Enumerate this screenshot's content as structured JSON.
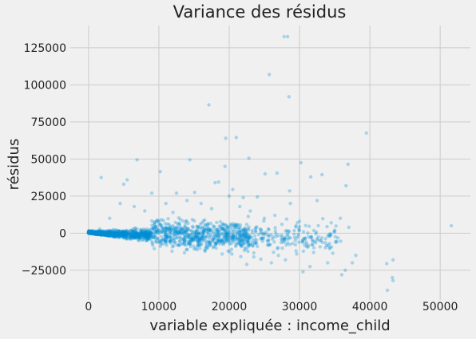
{
  "chart_data": {
    "type": "scatter",
    "title": "Variance des résidus",
    "xlabel": "variable expliquée : income_child",
    "ylabel": "résidus",
    "xlim": [
      -2600,
      54300
    ],
    "ylim": [
      -45000,
      140000
    ],
    "xticks": [
      0,
      10000,
      20000,
      30000,
      40000,
      50000
    ],
    "yticks": [
      -25000,
      0,
      25000,
      50000,
      75000,
      100000,
      125000
    ],
    "grid": true,
    "legend": "none",
    "point_color": "#008fd5",
    "point_alpha": 0.3,
    "band": {
      "x_range": [
        0,
        39000
      ],
      "description": "dense cloud; center values"
    },
    "points": [
      [
        1800,
        37500
      ],
      [
        5000,
        33000
      ],
      [
        5500,
        36000
      ],
      [
        6900,
        49500
      ],
      [
        9000,
        27000
      ],
      [
        10200,
        41500
      ],
      [
        12500,
        27000
      ],
      [
        14400,
        49500
      ],
      [
        15100,
        27500
      ],
      [
        17100,
        86500
      ],
      [
        18000,
        34000
      ],
      [
        18500,
        34500
      ],
      [
        19500,
        64000
      ],
      [
        19400,
        45000
      ],
      [
        21000,
        64500
      ],
      [
        20500,
        29500
      ],
      [
        22000,
        24000
      ],
      [
        22800,
        50500
      ],
      [
        24000,
        24500
      ],
      [
        25700,
        107000
      ],
      [
        25100,
        40000
      ],
      [
        26800,
        40500
      ],
      [
        27800,
        132500
      ],
      [
        28300,
        132500
      ],
      [
        28500,
        92000
      ],
      [
        28600,
        28500
      ],
      [
        30200,
        47500
      ],
      [
        31600,
        38000
      ],
      [
        32500,
        22000
      ],
      [
        33200,
        39500
      ],
      [
        34500,
        7000
      ],
      [
        35800,
        10000
      ],
      [
        36600,
        32000
      ],
      [
        36900,
        46500
      ],
      [
        37000,
        4000
      ],
      [
        38000,
        -15000
      ],
      [
        37500,
        -20000
      ],
      [
        39500,
        67500
      ],
      [
        42400,
        -20500
      ],
      [
        42500,
        -38500
      ],
      [
        43300,
        -18000
      ],
      [
        43200,
        -30000
      ],
      [
        43300,
        -32000
      ],
      [
        51600,
        5000
      ],
      [
        36000,
        -28000
      ],
      [
        36500,
        -25000
      ],
      [
        34000,
        -20000
      ],
      [
        32000,
        -13000
      ],
      [
        31500,
        -22500
      ],
      [
        30500,
        -26000
      ],
      [
        29500,
        -12000
      ],
      [
        28000,
        -18000
      ],
      [
        27000,
        -15000
      ],
      [
        26000,
        -20000
      ],
      [
        24500,
        -17500
      ],
      [
        23500,
        -16000
      ],
      [
        22500,
        -21000
      ],
      [
        30000,
        8000
      ],
      [
        29000,
        -7000
      ],
      [
        33000,
        -5000
      ],
      [
        35000,
        2000
      ],
      [
        26500,
        12000
      ],
      [
        25000,
        10000
      ],
      [
        23000,
        15000
      ],
      [
        20000,
        25000
      ],
      [
        16000,
        20000
      ],
      [
        14000,
        22000
      ],
      [
        11000,
        20000
      ],
      [
        8000,
        15000
      ],
      [
        3000,
        10000
      ],
      [
        4500,
        20000
      ],
      [
        6500,
        18000
      ],
      [
        12000,
        14000
      ],
      [
        17500,
        16500
      ],
      [
        21500,
        18000
      ],
      [
        27500,
        6000
      ],
      [
        31000,
        -9000
      ],
      [
        33700,
        -6500
      ],
      [
        24000,
        -9000
      ],
      [
        19000,
        -14000
      ],
      [
        16500,
        -11500
      ],
      [
        14500,
        -9000
      ],
      [
        13000,
        -8000
      ],
      [
        28700,
        20000
      ]
    ]
  }
}
